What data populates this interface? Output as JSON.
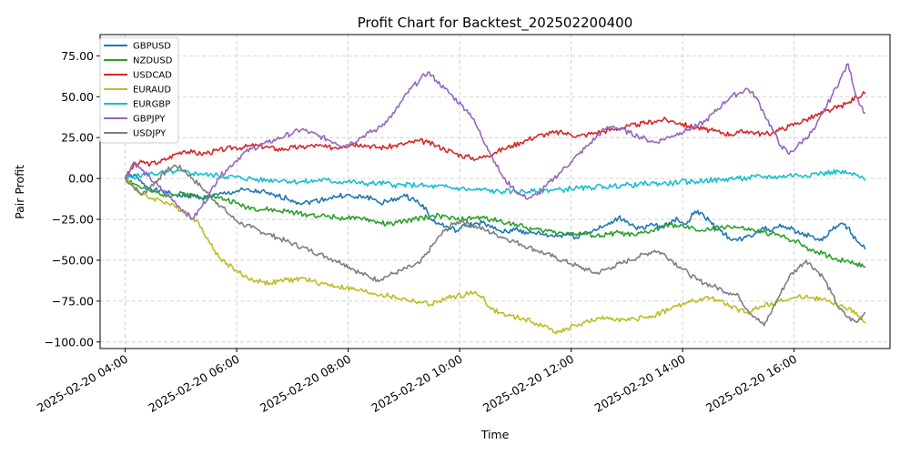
{
  "chart_data": {
    "type": "line",
    "title": "Profit Chart for Backtest_202502200400",
    "xlabel": "Time",
    "ylabel": "Pair Profit",
    "x_start_hours": 4.0,
    "x_end_hours": 17.27,
    "xlim_hours": [
      3.55,
      17.72
    ],
    "ylim": [
      -104,
      88
    ],
    "grid": true,
    "legend_position": "top-left",
    "x_ticks": [
      {
        "hours": 4,
        "label": "2025-02-20 04:00"
      },
      {
        "hours": 6,
        "label": "2025-02-20 06:00"
      },
      {
        "hours": 8,
        "label": "2025-02-20 08:00"
      },
      {
        "hours": 10,
        "label": "2025-02-20 10:00"
      },
      {
        "hours": 12,
        "label": "2025-02-20 12:00"
      },
      {
        "hours": 14,
        "label": "2025-02-20 14:00"
      },
      {
        "hours": 16,
        "label": "2025-02-20 16:00"
      }
    ],
    "y_ticks": [
      {
        "value": 75,
        "label": "75.00"
      },
      {
        "value": 50,
        "label": "50.00"
      },
      {
        "value": 25,
        "label": "25.00"
      },
      {
        "value": 0,
        "label": "0.00"
      },
      {
        "value": -25,
        "label": "−25.00"
      },
      {
        "value": -50,
        "label": "−50.00"
      },
      {
        "value": -75,
        "label": "−75.00"
      },
      {
        "value": -100,
        "label": "−100.00"
      }
    ],
    "series": [
      {
        "name": "GBPUSD",
        "color": "#1f77b4",
        "values": [
          0,
          2,
          -3,
          -6,
          -8,
          -9,
          -10,
          -11,
          -10,
          -12,
          -11,
          -10,
          -9,
          -8,
          -7,
          -8,
          -8,
          -10,
          -11,
          -12,
          -14,
          -15,
          -14,
          -13,
          -12,
          -11,
          -10,
          -12,
          -11,
          -12,
          -15,
          -14,
          -12,
          -11,
          -13,
          -16,
          -25,
          -28,
          -30,
          -32,
          -29,
          -28,
          -27,
          -30,
          -32,
          -33,
          -30,
          -34,
          -33,
          -34,
          -35,
          -35,
          -34,
          -36,
          -33,
          -32,
          -30,
          -28,
          -24,
          -26,
          -30,
          -31,
          -28,
          -30,
          -27,
          -25,
          -28,
          -20,
          -22,
          -28,
          -32,
          -36,
          -38,
          -36,
          -34,
          -30,
          -32,
          -28,
          -30,
          -33,
          -34,
          -36,
          -38,
          -32,
          -28,
          -30,
          -38,
          -43
        ]
      },
      {
        "name": "NZDUSD",
        "color": "#2ca02c",
        "values": [
          0,
          -3,
          -6,
          -8,
          -9,
          -10,
          -10,
          -9,
          -11,
          -12,
          -10,
          -12,
          -13,
          -15,
          -17,
          -18,
          -19,
          -19,
          -20,
          -20,
          -21,
          -22,
          -22,
          -23,
          -23,
          -24,
          -24,
          -25,
          -24,
          -26,
          -27,
          -28,
          -27,
          -26,
          -25,
          -24,
          -23,
          -23,
          -24,
          -25,
          -25,
          -24,
          -24,
          -25,
          -26,
          -27,
          -28,
          -30,
          -31,
          -32,
          -32,
          -33,
          -33,
          -34,
          -34,
          -35,
          -35,
          -34,
          -33,
          -34,
          -35,
          -33,
          -32,
          -30,
          -28,
          -29,
          -30,
          -31,
          -32,
          -31,
          -30,
          -29,
          -30,
          -31,
          -32,
          -33,
          -34,
          -35,
          -37,
          -38,
          -42,
          -44,
          -46,
          -48,
          -50,
          -50,
          -52,
          -54
        ]
      },
      {
        "name": "USDCAD",
        "color": "#d62728",
        "values": [
          0,
          8,
          10,
          9,
          10,
          12,
          15,
          17,
          16,
          15,
          16,
          17,
          18,
          19,
          19,
          20,
          20,
          19,
          18,
          18,
          19,
          19,
          20,
          20,
          19,
          19,
          20,
          21,
          21,
          20,
          19,
          19,
          20,
          21,
          22,
          23,
          22,
          20,
          18,
          16,
          14,
          13,
          12,
          14,
          16,
          18,
          20,
          22,
          24,
          26,
          27,
          28,
          28,
          27,
          26,
          27,
          28,
          29,
          30,
          31,
          32,
          33,
          34,
          35,
          36,
          35,
          34,
          32,
          31,
          30,
          29,
          28,
          27,
          28,
          29,
          28,
          27,
          28,
          30,
          32,
          34,
          36,
          38,
          40,
          42,
          44,
          46,
          50,
          52
        ]
      },
      {
        "name": "EURAUD",
        "color": "#bcbd22",
        "values": [
          0,
          -5,
          -10,
          -12,
          -13,
          -15,
          -18,
          -20,
          -24,
          -30,
          -40,
          -48,
          -52,
          -56,
          -60,
          -62,
          -63,
          -64,
          -63,
          -62,
          -62,
          -61,
          -63,
          -64,
          -65,
          -66,
          -67,
          -68,
          -69,
          -70,
          -71,
          -72,
          -73,
          -74,
          -75,
          -76,
          -77,
          -75,
          -73,
          -72,
          -71,
          -70,
          -72,
          -80,
          -82,
          -84,
          -85,
          -86,
          -88,
          -90,
          -92,
          -94,
          -92,
          -90,
          -88,
          -87,
          -86,
          -85,
          -86,
          -87,
          -86,
          -85,
          -84,
          -82,
          -80,
          -78,
          -76,
          -75,
          -74,
          -73,
          -75,
          -78,
          -80,
          -82,
          -80,
          -78,
          -76,
          -75,
          -74,
          -73,
          -72,
          -73,
          -74,
          -76,
          -78,
          -80,
          -82,
          -88
        ]
      },
      {
        "name": "EURGBP",
        "color": "#17becf",
        "values": [
          0,
          1,
          2,
          3,
          3,
          4,
          4,
          4,
          3,
          3,
          2,
          2,
          1,
          1,
          0,
          0,
          -1,
          -1,
          -1,
          -1,
          -2,
          -2,
          -2,
          -1,
          -1,
          -2,
          -2,
          -2,
          -3,
          -3,
          -3,
          -3,
          -4,
          -4,
          -4,
          -4,
          -5,
          -5,
          -5,
          -6,
          -6,
          -7,
          -7,
          -7,
          -8,
          -8,
          -8,
          -8,
          -8,
          -8,
          -7,
          -7,
          -7,
          -6,
          -6,
          -6,
          -5,
          -5,
          -5,
          -4,
          -4,
          -4,
          -3,
          -3,
          -3,
          -3,
          -2,
          -2,
          -2,
          -1,
          -1,
          -1,
          0,
          0,
          0,
          1,
          1,
          1,
          1,
          2,
          2,
          2,
          3,
          3,
          4,
          4,
          3,
          2,
          -1
        ]
      },
      {
        "name": "GBPJPY",
        "color": "#9467bd",
        "values": [
          0,
          10,
          5,
          0,
          -5,
          -10,
          -15,
          -20,
          -25,
          -18,
          -10,
          0,
          5,
          10,
          15,
          18,
          20,
          22,
          24,
          26,
          28,
          30,
          28,
          26,
          24,
          22,
          20,
          22,
          25,
          28,
          30,
          35,
          40,
          48,
          55,
          60,
          65,
          60,
          55,
          50,
          45,
          40,
          30,
          20,
          10,
          0,
          -5,
          -10,
          -12,
          -10,
          -5,
          0,
          5,
          10,
          15,
          20,
          25,
          30,
          32,
          30,
          28,
          26,
          24,
          22,
          24,
          26,
          28,
          30,
          32,
          35,
          40,
          45,
          50,
          52,
          55,
          50,
          40,
          30,
          20,
          15,
          20,
          25,
          30,
          40,
          50,
          60,
          70,
          50,
          40
        ]
      },
      {
        "name": "USDJPY",
        "color": "#7f7f7f",
        "values": [
          0,
          -5,
          -10,
          -5,
          0,
          5,
          8,
          5,
          0,
          -5,
          -10,
          -15,
          -20,
          -25,
          -28,
          -30,
          -32,
          -34,
          -36,
          -38,
          -40,
          -42,
          -44,
          -46,
          -48,
          -50,
          -52,
          -55,
          -58,
          -60,
          -62,
          -60,
          -58,
          -56,
          -54,
          -52,
          -45,
          -38,
          -32,
          -28,
          -26,
          -28,
          -30,
          -32,
          -34,
          -36,
          -38,
          -40,
          -42,
          -44,
          -46,
          -48,
          -50,
          -52,
          -54,
          -56,
          -58,
          -56,
          -54,
          -52,
          -50,
          -48,
          -46,
          -44,
          -46,
          -50,
          -54,
          -58,
          -62,
          -64,
          -66,
          -68,
          -70,
          -72,
          -80,
          -85,
          -90,
          -80,
          -70,
          -60,
          -55,
          -50,
          -55,
          -60,
          -70,
          -80,
          -85,
          -88,
          -82
        ]
      }
    ]
  }
}
